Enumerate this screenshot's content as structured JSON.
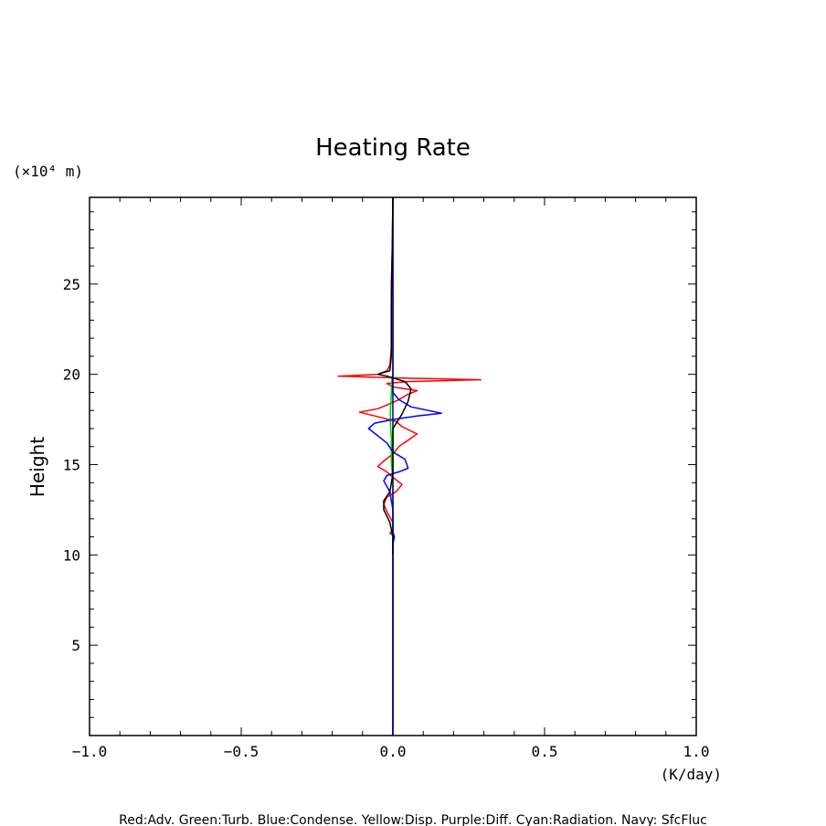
{
  "chart_data": {
    "type": "line",
    "title": "Heating Rate",
    "xlabel": "(K/day)",
    "ylabel": "Height",
    "yunit": "(×10⁴ m)",
    "xlim": [
      -1.0,
      1.0
    ],
    "ylim": [
      0,
      29.8
    ],
    "xticks": [
      -1.0,
      -0.5,
      0.0,
      0.5,
      1.0
    ],
    "xtick_labels": [
      "−1.0",
      "−0.5",
      "0.0",
      "0.5",
      "1.0"
    ],
    "yticks": [
      5,
      10,
      15,
      20,
      25
    ],
    "ytick_labels": [
      "5",
      "10",
      "15",
      "20",
      "25"
    ],
    "legend_text": "Red:Adv. Green:Turb. Blue:Condense. Yellow:Disp. Purple:Diff. Cyan:Radiation. Navy: SfcFluc",
    "series": [
      {
        "name": "Adv",
        "color": "#ff0000",
        "points": [
          [
            0.0,
            0
          ],
          [
            0.0,
            10.2
          ],
          [
            0.0,
            11.1
          ],
          [
            -0.01,
            11.2
          ],
          [
            0.0,
            11.4
          ],
          [
            0.0,
            11.8
          ],
          [
            -0.02,
            12.4
          ],
          [
            -0.03,
            12.8
          ],
          [
            -0.02,
            13.2
          ],
          [
            0.01,
            13.5
          ],
          [
            0.03,
            13.9
          ],
          [
            0.0,
            14.3
          ],
          [
            -0.02,
            14.6
          ],
          [
            -0.05,
            14.9
          ],
          [
            -0.03,
            15.2
          ],
          [
            0.0,
            15.6
          ],
          [
            0.02,
            16.0
          ],
          [
            0.08,
            16.7
          ],
          [
            0.03,
            17.1
          ],
          [
            0.01,
            17.4
          ],
          [
            -0.06,
            17.7
          ],
          [
            -0.11,
            17.9
          ],
          [
            -0.05,
            18.1
          ],
          [
            -0.02,
            18.3
          ],
          [
            0.02,
            18.6
          ],
          [
            0.05,
            18.9
          ],
          [
            0.08,
            19.1
          ],
          [
            0.0,
            19.3
          ],
          [
            -0.02,
            19.5
          ],
          [
            0.05,
            19.6
          ],
          [
            0.29,
            19.7
          ],
          [
            0.03,
            19.8
          ],
          [
            -0.18,
            19.9
          ],
          [
            -0.05,
            20.0
          ],
          [
            -0.02,
            20.2
          ],
          [
            -0.01,
            20.5
          ],
          [
            -0.005,
            21.5
          ],
          [
            -0.005,
            23.0
          ],
          [
            -0.005,
            25.0
          ],
          [
            -0.002,
            27.0
          ],
          [
            0.0,
            29.8
          ]
        ]
      },
      {
        "name": "Turb",
        "color": "#00cc00",
        "points": [
          [
            0.0,
            11.5
          ],
          [
            0.0,
            14.0
          ],
          [
            -0.005,
            15.2
          ],
          [
            -0.005,
            16.5
          ],
          [
            -0.008,
            17.2
          ],
          [
            -0.008,
            18.0
          ],
          [
            -0.005,
            19.0
          ],
          [
            -0.003,
            19.9
          ]
        ]
      },
      {
        "name": "Condense",
        "color": "#0000ff",
        "points": [
          [
            0.0,
            0
          ],
          [
            0.0,
            10.6
          ],
          [
            0.005,
            11.0
          ],
          [
            0.0,
            11.3
          ],
          [
            0.0,
            12.5
          ],
          [
            -0.01,
            13.5
          ],
          [
            -0.03,
            14.1
          ],
          [
            -0.02,
            14.4
          ],
          [
            0.02,
            14.6
          ],
          [
            0.05,
            14.8
          ],
          [
            0.04,
            15.3
          ],
          [
            0.0,
            15.7
          ],
          [
            -0.02,
            16.2
          ],
          [
            -0.05,
            16.6
          ],
          [
            -0.08,
            17.0
          ],
          [
            -0.06,
            17.3
          ],
          [
            0.0,
            17.5
          ],
          [
            0.08,
            17.7
          ],
          [
            0.16,
            17.85
          ],
          [
            0.06,
            18.2
          ],
          [
            0.02,
            18.6
          ],
          [
            0.0,
            19.0
          ],
          [
            0.0,
            19.5
          ],
          [
            0.0,
            29.8
          ]
        ]
      },
      {
        "name": "SfcFluc",
        "color": "#000080",
        "points": [
          [
            0.0,
            0
          ],
          [
            0.0,
            29.8
          ]
        ]
      },
      {
        "name": "Total",
        "color": "#000000",
        "points": [
          [
            0.0,
            10.0
          ],
          [
            0.0,
            11.0
          ],
          [
            -0.01,
            11.8
          ],
          [
            -0.03,
            12.5
          ],
          [
            -0.03,
            13.0
          ],
          [
            -0.01,
            13.5
          ],
          [
            0.0,
            14.5
          ],
          [
            0.0,
            15.5
          ],
          [
            0.0,
            16.2
          ],
          [
            0.0,
            17.0
          ],
          [
            0.03,
            17.8
          ],
          [
            0.05,
            18.5
          ],
          [
            0.06,
            19.2
          ],
          [
            0.04,
            19.6
          ],
          [
            -0.02,
            19.9
          ],
          [
            -0.05,
            20.0
          ],
          [
            -0.01,
            20.2
          ],
          [
            -0.005,
            21.0
          ],
          [
            -0.005,
            24.0
          ],
          [
            -0.002,
            27.0
          ],
          [
            0.0,
            29.8
          ]
        ]
      }
    ]
  }
}
